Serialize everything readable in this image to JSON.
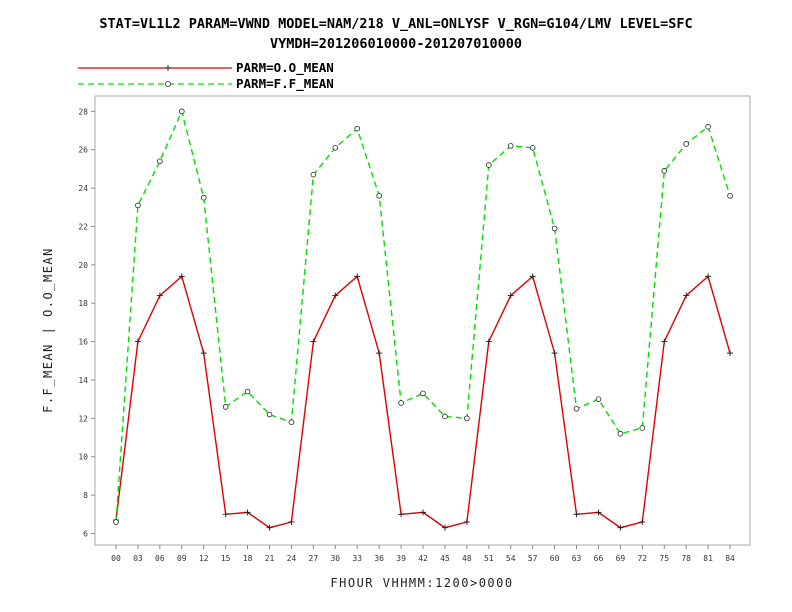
{
  "chart_data": {
    "type": "line",
    "title_line1": "STAT=VL1L2 PARAM=VWND MODEL=NAM/218 V_ANL=ONLYSF V_RGN=G104/LMV LEVEL=SFC",
    "title_line2": "VYMDH=201206010000-201207010000",
    "xlabel": "FHOUR VHHMM:1200>0000",
    "ylabel": "F.F_MEAN | O.O_MEAN",
    "categories": [
      "00",
      "03",
      "06",
      "09",
      "12",
      "15",
      "18",
      "21",
      "24",
      "27",
      "30",
      "33",
      "36",
      "39",
      "42",
      "45",
      "48",
      "51",
      "54",
      "57",
      "60",
      "63",
      "66",
      "69",
      "72",
      "75",
      "78",
      "81",
      "84"
    ],
    "ylim": [
      5.4,
      28.8
    ],
    "yticks": [
      6,
      8,
      10,
      12,
      14,
      16,
      18,
      20,
      22,
      24,
      26,
      28
    ],
    "legend_position": "top-left",
    "series": [
      {
        "name": "PARM=O.O_MEAN",
        "color": "#e00000",
        "dash": "solid",
        "marker": "plus",
        "values": [
          6.7,
          16.0,
          18.4,
          19.4,
          15.4,
          7.0,
          7.1,
          6.3,
          6.6,
          16.0,
          18.4,
          19.4,
          15.4,
          7.0,
          7.1,
          6.3,
          6.6,
          16.0,
          18.4,
          19.4,
          15.4,
          7.0,
          7.1,
          6.3,
          6.6,
          16.0,
          18.4,
          19.4,
          15.4
        ]
      },
      {
        "name": "PARM=F.F_MEAN",
        "color": "#00e000",
        "dash": "dashed",
        "marker": "circle",
        "values": [
          6.6,
          23.1,
          25.4,
          28.0,
          23.5,
          12.6,
          13.4,
          12.2,
          11.8,
          24.7,
          26.1,
          27.1,
          23.6,
          12.8,
          13.3,
          12.1,
          12.0,
          25.2,
          26.2,
          26.1,
          21.9,
          12.5,
          13.0,
          11.2,
          11.5,
          24.9,
          26.3,
          27.2,
          23.6
        ]
      }
    ]
  }
}
